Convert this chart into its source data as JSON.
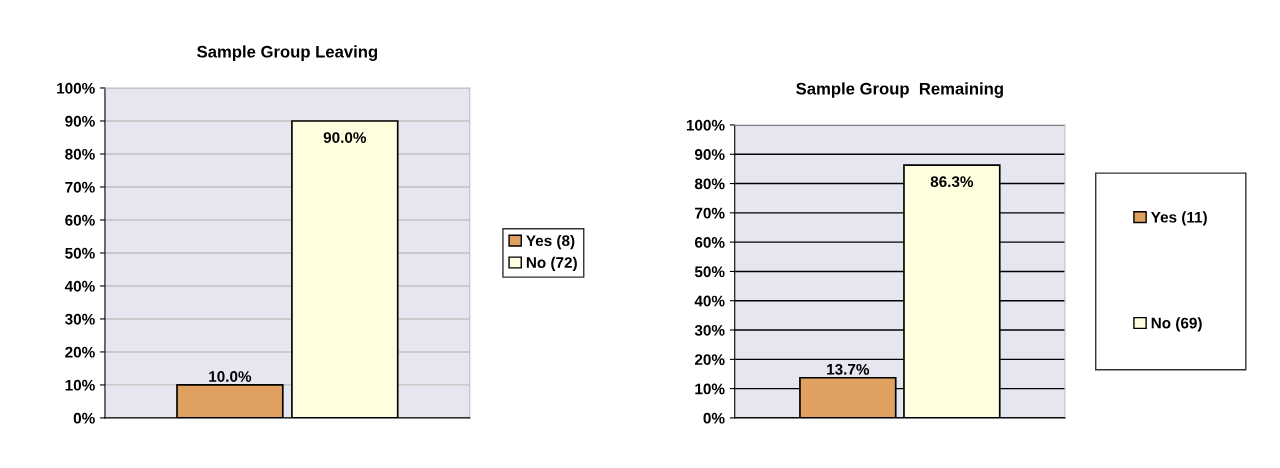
{
  "chart_data": [
    {
      "type": "bar",
      "title": "Sample Group Leaving",
      "categories": [
        null
      ],
      "series": [
        {
          "name": "Yes (8)",
          "color": "#e0a060",
          "values": [
            10.0
          ],
          "value_labels": [
            "10.0%"
          ]
        },
        {
          "name": "No (72)",
          "color": "#ffffe0",
          "values": [
            90.0
          ],
          "value_labels": [
            "90.0%"
          ]
        }
      ],
      "ylim": [
        0,
        100
      ],
      "yticks": [
        {
          "value": 0,
          "label": "0%"
        },
        {
          "value": 10,
          "label": "10%"
        },
        {
          "value": 20,
          "label": "20%"
        },
        {
          "value": 30,
          "label": "30%"
        },
        {
          "value": 40,
          "label": "40%"
        },
        {
          "value": 50,
          "label": "50%"
        },
        {
          "value": 60,
          "label": "60%"
        },
        {
          "value": 70,
          "label": "70%"
        },
        {
          "value": 80,
          "label": "80%"
        },
        {
          "value": 90,
          "label": "90%"
        },
        {
          "value": 100,
          "label": "100%"
        }
      ],
      "grid": "y",
      "legend": "right"
    },
    {
      "type": "bar",
      "title": "Sample Group  Remaining",
      "categories": [
        null
      ],
      "series": [
        {
          "name": "Yes (11)",
          "color": "#e0a060",
          "values": [
            13.7
          ],
          "value_labels": [
            "13.7%"
          ]
        },
        {
          "name": "No (69)",
          "color": "#ffffe0",
          "values": [
            86.3
          ],
          "value_labels": [
            "86.3%"
          ]
        }
      ],
      "ylim": [
        0,
        100
      ],
      "yticks": [
        {
          "value": 0,
          "label": "0%"
        },
        {
          "value": 10,
          "label": "10%"
        },
        {
          "value": 20,
          "label": "20%"
        },
        {
          "value": 30,
          "label": "30%"
        },
        {
          "value": 40,
          "label": "40%"
        },
        {
          "value": 50,
          "label": "50%"
        },
        {
          "value": 60,
          "label": "60%"
        },
        {
          "value": 70,
          "label": "70%"
        },
        {
          "value": 80,
          "label": "80%"
        },
        {
          "value": 90,
          "label": "90%"
        },
        {
          "value": 100,
          "label": "100%"
        }
      ],
      "grid": "y",
      "legend": "right"
    }
  ]
}
